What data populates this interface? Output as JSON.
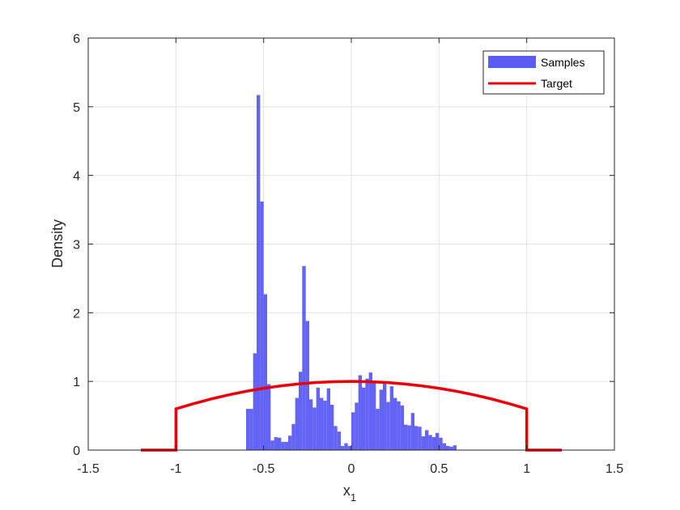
{
  "chart_data": {
    "type": "histogram",
    "xlabel": "x",
    "xlabel_subscript": "1",
    "ylabel": "Density",
    "xlim": [
      -1.5,
      1.5
    ],
    "ylim": [
      0,
      6
    ],
    "xticks": [
      -1.5,
      -1,
      -0.5,
      0,
      0.5,
      1,
      1.5
    ],
    "xtick_labels": [
      "-1.5",
      "-1",
      "-0.5",
      "0",
      "0.5",
      "1",
      "1.5"
    ],
    "yticks": [
      0,
      1,
      2,
      3,
      4,
      5,
      6
    ],
    "ytick_labels": [
      "0",
      "1",
      "2",
      "3",
      "4",
      "5",
      "6"
    ],
    "grid": true,
    "legend_position": "top-right",
    "series": [
      {
        "name": "Samples",
        "kind": "histogram",
        "color": "#5b5bf5",
        "bin_width": 0.02,
        "bins": [
          {
            "left": -0.6,
            "value": 0.6
          },
          {
            "left": -0.58,
            "value": 0.6
          },
          {
            "left": -0.56,
            "value": 1.41
          },
          {
            "left": -0.54,
            "value": 5.17
          },
          {
            "left": -0.52,
            "value": 3.62
          },
          {
            "left": -0.5,
            "value": 2.27
          },
          {
            "left": -0.48,
            "value": 0.96
          },
          {
            "left": -0.46,
            "value": 0.14
          },
          {
            "left": -0.44,
            "value": 0.19
          },
          {
            "left": -0.42,
            "value": 0.18
          },
          {
            "left": -0.4,
            "value": 0.12
          },
          {
            "left": -0.38,
            "value": 0.12
          },
          {
            "left": -0.36,
            "value": 0.21
          },
          {
            "left": -0.34,
            "value": 0.38
          },
          {
            "left": -0.32,
            "value": 0.76
          },
          {
            "left": -0.3,
            "value": 1.14
          },
          {
            "left": -0.28,
            "value": 2.68
          },
          {
            "left": -0.26,
            "value": 1.88
          },
          {
            "left": -0.24,
            "value": 0.74
          },
          {
            "left": -0.22,
            "value": 0.62
          },
          {
            "left": -0.2,
            "value": 0.91
          },
          {
            "left": -0.18,
            "value": 0.76
          },
          {
            "left": -0.16,
            "value": 0.72
          },
          {
            "left": -0.14,
            "value": 0.9
          },
          {
            "left": -0.12,
            "value": 0.66
          },
          {
            "left": -0.1,
            "value": 0.35
          },
          {
            "left": -0.08,
            "value": 0.27
          },
          {
            "left": -0.06,
            "value": 0.06
          },
          {
            "left": -0.04,
            "value": 0.1
          },
          {
            "left": -0.02,
            "value": 0.06
          },
          {
            "left": 0.0,
            "value": 0.55
          },
          {
            "left": 0.02,
            "value": 0.69
          },
          {
            "left": 0.04,
            "value": 1.09
          },
          {
            "left": 0.06,
            "value": 0.91
          },
          {
            "left": 0.08,
            "value": 1.04
          },
          {
            "left": 0.1,
            "value": 1.13
          },
          {
            "left": 0.12,
            "value": 0.99
          },
          {
            "left": 0.14,
            "value": 0.6
          },
          {
            "left": 0.16,
            "value": 0.88
          },
          {
            "left": 0.18,
            "value": 0.97
          },
          {
            "left": 0.2,
            "value": 0.7
          },
          {
            "left": 0.22,
            "value": 0.93
          },
          {
            "left": 0.24,
            "value": 0.76
          },
          {
            "left": 0.26,
            "value": 0.71
          },
          {
            "left": 0.28,
            "value": 0.65
          },
          {
            "left": 0.3,
            "value": 0.37
          },
          {
            "left": 0.32,
            "value": 0.36
          },
          {
            "left": 0.34,
            "value": 0.54
          },
          {
            "left": 0.36,
            "value": 0.35
          },
          {
            "left": 0.38,
            "value": 0.34
          },
          {
            "left": 0.4,
            "value": 0.2
          },
          {
            "left": 0.42,
            "value": 0.29
          },
          {
            "left": 0.44,
            "value": 0.22
          },
          {
            "left": 0.46,
            "value": 0.19
          },
          {
            "left": 0.48,
            "value": 0.25
          },
          {
            "left": 0.5,
            "value": 0.18
          },
          {
            "left": 0.52,
            "value": 0.1
          },
          {
            "left": 0.54,
            "value": 0.06
          },
          {
            "left": 0.56,
            "value": 0.05
          },
          {
            "left": 0.58,
            "value": 0.07
          }
        ]
      },
      {
        "name": "Target",
        "kind": "line",
        "color": "#e8000b",
        "points": [
          [
            -1.2,
            0
          ],
          [
            -1.0,
            0
          ],
          [
            -1.0,
            0.6
          ],
          [
            -0.9,
            0.676
          ],
          [
            -0.8,
            0.744
          ],
          [
            -0.7,
            0.804
          ],
          [
            -0.6,
            0.856
          ],
          [
            -0.5,
            0.9
          ],
          [
            -0.4,
            0.936
          ],
          [
            -0.3,
            0.964
          ],
          [
            -0.2,
            0.984
          ],
          [
            -0.1,
            0.996
          ],
          [
            0.0,
            1.0
          ],
          [
            0.1,
            0.996
          ],
          [
            0.2,
            0.984
          ],
          [
            0.3,
            0.964
          ],
          [
            0.4,
            0.936
          ],
          [
            0.5,
            0.9
          ],
          [
            0.6,
            0.856
          ],
          [
            0.7,
            0.804
          ],
          [
            0.8,
            0.744
          ],
          [
            0.9,
            0.676
          ],
          [
            1.0,
            0.6
          ],
          [
            1.0,
            0
          ],
          [
            1.2,
            0
          ]
        ]
      }
    ]
  }
}
